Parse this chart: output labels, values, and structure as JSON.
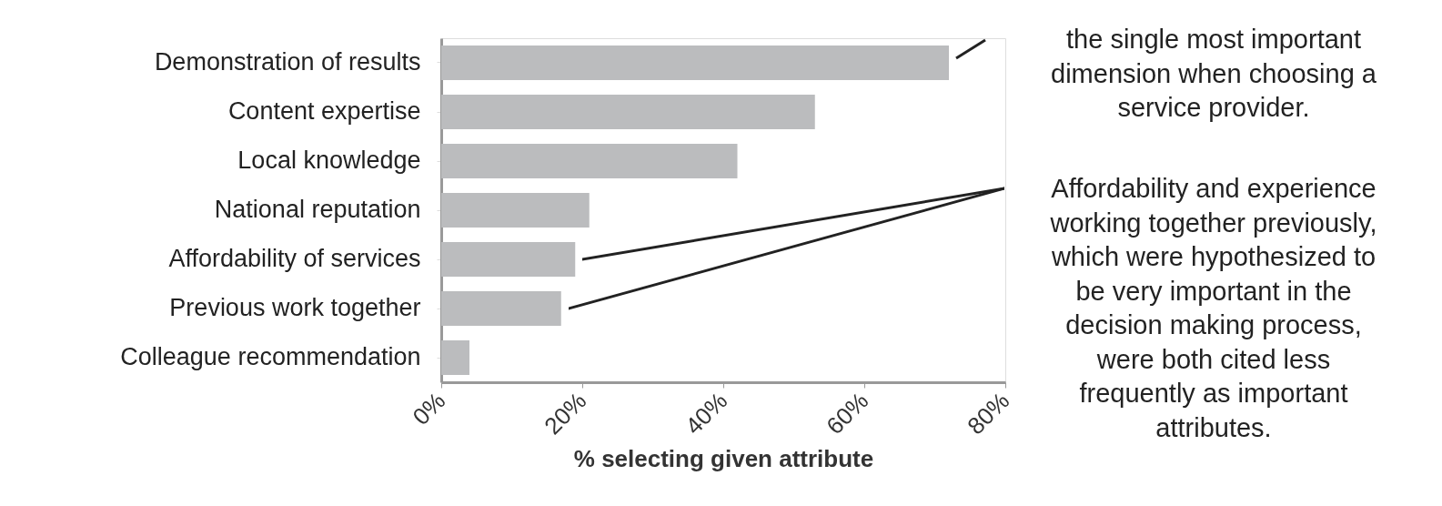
{
  "chart_data": {
    "type": "bar",
    "orientation": "horizontal",
    "categories": [
      "Demonstration of results",
      "Content expertise",
      "Local knowledge",
      "National reputation",
      "Affordability of services",
      "Previous work together",
      "Colleague recommendation"
    ],
    "values": [
      72,
      53,
      42,
      21,
      19,
      17,
      4
    ],
    "color": "#bbbcbe",
    "xlabel": "% selecting given attribute",
    "xlim": [
      0,
      80
    ],
    "xticks": [
      {
        "value": 0,
        "label": "0%"
      },
      {
        "value": 20,
        "label": "20%"
      },
      {
        "value": 40,
        "label": "40%"
      },
      {
        "value": 60,
        "label": "60%"
      },
      {
        "value": 80,
        "label": "80%"
      }
    ],
    "grid": false,
    "annotations": [
      "the single most important\ndimension when choosing a\nservice provider.",
      "Affordability and experience\nworking together previously,\nwhich were hypothesized to\nbe very important in the\ndecision making process,\nwere both cited less\nfrequently as important\nattributes."
    ]
  }
}
